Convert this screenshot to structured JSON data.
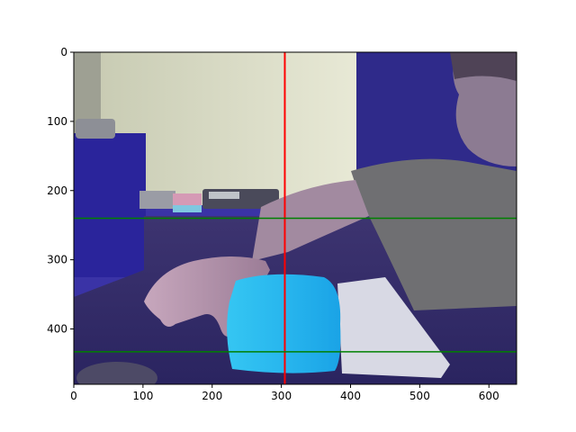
{
  "chart_data": {
    "type": "image",
    "title": "",
    "xlabel": "",
    "ylabel": "",
    "xlim": [
      0,
      640
    ],
    "ylim": [
      480,
      0
    ],
    "y_axis_inverted": true,
    "x_ticks": [
      0,
      100,
      200,
      300,
      400,
      500,
      600
    ],
    "y_ticks": [
      0,
      100,
      200,
      300,
      400
    ],
    "grid": false,
    "image_content": "webcam photo of a person's hand resting on a light-blue object on a desk, bluish color cast",
    "overlay_lines": [
      {
        "orientation": "vertical",
        "x": 305,
        "color": "#ff0000"
      },
      {
        "orientation": "horizontal",
        "y": 240,
        "color": "#008000"
      },
      {
        "orientation": "horizontal",
        "y": 433,
        "color": "#008000"
      }
    ]
  }
}
